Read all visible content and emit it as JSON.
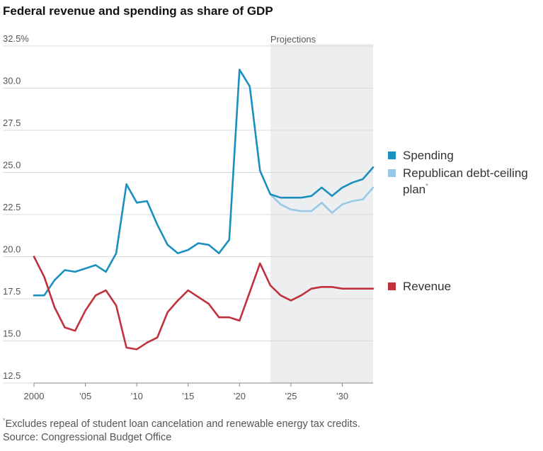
{
  "chart_data": {
    "type": "line",
    "title": "Federal revenue and spending as share of GDP",
    "xlim": [
      2000,
      2033
    ],
    "ylim": [
      12.5,
      32.5
    ],
    "y_ticks": [
      {
        "value": 32.5,
        "label": "32.5%"
      },
      {
        "value": 30.0,
        "label": "30.0"
      },
      {
        "value": 27.5,
        "label": "27.5"
      },
      {
        "value": 25.0,
        "label": "25.0"
      },
      {
        "value": 22.5,
        "label": "22.5"
      },
      {
        "value": 20.0,
        "label": "20.0"
      },
      {
        "value": 17.5,
        "label": "17.5"
      },
      {
        "value": 15.0,
        "label": "15.0"
      },
      {
        "value": 12.5,
        "label": "12.5"
      }
    ],
    "x_ticks": [
      {
        "value": 2000,
        "label": "2000"
      },
      {
        "value": 2005,
        "label": "'05"
      },
      {
        "value": 2010,
        "label": "'10"
      },
      {
        "value": 2015,
        "label": "'15"
      },
      {
        "value": 2020,
        "label": "'20"
      },
      {
        "value": 2025,
        "label": "'25"
      },
      {
        "value": 2030,
        "label": "'30"
      }
    ],
    "grid": true,
    "projection": {
      "label": "Projections",
      "start": 2023,
      "end": 2033
    },
    "series": [
      {
        "name": "Spending",
        "color": "#1a8fc0",
        "x": [
          2000,
          2001,
          2002,
          2003,
          2004,
          2005,
          2006,
          2007,
          2008,
          2009,
          2010,
          2011,
          2012,
          2013,
          2014,
          2015,
          2016,
          2017,
          2018,
          2019,
          2020,
          2021,
          2022,
          2023,
          2024,
          2025,
          2026,
          2027,
          2028,
          2029,
          2030,
          2031,
          2032,
          2033
        ],
        "values": [
          17.7,
          17.7,
          18.6,
          19.2,
          19.1,
          19.3,
          19.5,
          19.1,
          20.2,
          24.3,
          23.2,
          23.3,
          21.9,
          20.7,
          20.2,
          20.4,
          20.8,
          20.7,
          20.2,
          21.0,
          31.1,
          30.1,
          25.1,
          23.7,
          23.5,
          23.5,
          23.5,
          23.6,
          24.1,
          23.6,
          24.1,
          24.4,
          24.6,
          25.3
        ]
      },
      {
        "name": "Republican debt-ceiling plan",
        "name_sup": "*",
        "color": "#97c9e6",
        "x": [
          2023,
          2024,
          2025,
          2026,
          2027,
          2028,
          2029,
          2030,
          2031,
          2032,
          2033
        ],
        "values": [
          23.7,
          23.1,
          22.8,
          22.7,
          22.7,
          23.2,
          22.6,
          23.1,
          23.3,
          23.4,
          24.1
        ]
      },
      {
        "name": "Revenue",
        "color": "#c1313c",
        "x": [
          2000,
          2001,
          2002,
          2003,
          2004,
          2005,
          2006,
          2007,
          2008,
          2009,
          2010,
          2011,
          2012,
          2013,
          2014,
          2015,
          2016,
          2017,
          2018,
          2019,
          2020,
          2021,
          2022,
          2023,
          2024,
          2025,
          2026,
          2027,
          2028,
          2029,
          2030,
          2031,
          2032,
          2033
        ],
        "values": [
          20.0,
          18.8,
          17.0,
          15.8,
          15.6,
          16.8,
          17.7,
          18.0,
          17.1,
          14.6,
          14.5,
          14.9,
          15.2,
          16.7,
          17.4,
          18.0,
          17.6,
          17.2,
          16.4,
          16.4,
          16.2,
          17.9,
          19.6,
          18.3,
          17.7,
          17.4,
          17.7,
          18.1,
          18.2,
          18.2,
          18.1,
          18.1,
          18.1,
          18.1
        ]
      }
    ]
  },
  "legend": {
    "spending": "Spending",
    "plan_line1": "Republican debt-ceiling",
    "plan_line2": "plan",
    "plan_sup": "*",
    "revenue": "Revenue"
  },
  "footnote_marker": "*",
  "footnote": "Excludes repeal of student loan cancelation and renewable energy tax credits.",
  "source": "Source: Congressional Budget Office"
}
